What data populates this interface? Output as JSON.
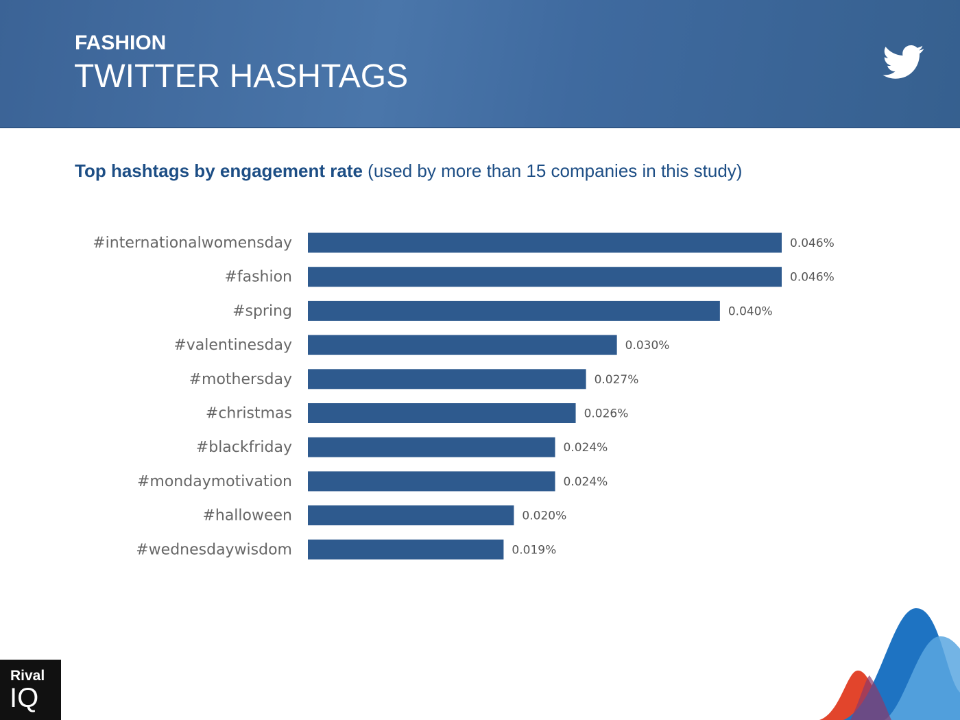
{
  "header": {
    "category": "FASHION",
    "title": "TWITTER HASHTAGS"
  },
  "logo": {
    "line1": "Rival",
    "line2": "IQ"
  },
  "chart_data": {
    "type": "bar",
    "orientation": "horizontal",
    "title": "Top hashtags by engagement rate",
    "subtitle": "(used by more than 15 companies in this study)",
    "categories": [
      "#internationalwomensday",
      "#fashion",
      "#spring",
      "#valentinesday",
      "#mothersday",
      "#christmas",
      "#blackfriday",
      "#mondaymotivation",
      "#halloween",
      "#wednesdaywisdom"
    ],
    "values": [
      0.046,
      0.046,
      0.04,
      0.03,
      0.027,
      0.026,
      0.024,
      0.024,
      0.02,
      0.019
    ],
    "value_labels": [
      "0.046%",
      "0.046%",
      "0.040%",
      "0.030%",
      "0.027%",
      "0.026%",
      "0.024%",
      "0.024%",
      "0.020%",
      "0.019%"
    ],
    "color": "#2e5a8e"
  }
}
